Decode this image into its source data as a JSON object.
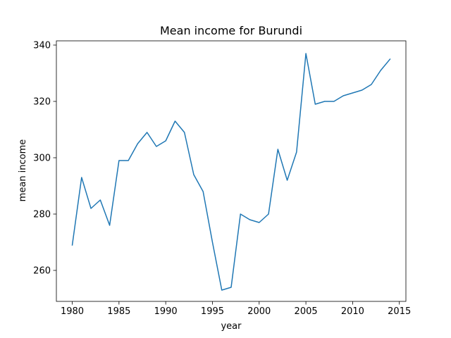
{
  "chart_data": {
    "type": "line",
    "title": "Mean income for Burundi",
    "xlabel": "year",
    "ylabel": "mean income",
    "xlim": [
      1978.3,
      2015.7
    ],
    "ylim": [
      249.0,
      341.5
    ],
    "xticks": [
      1980,
      1985,
      1990,
      1995,
      2000,
      2005,
      2010,
      2015
    ],
    "yticks": [
      260,
      280,
      300,
      320,
      340
    ],
    "grid": false,
    "color": "#1f77b4",
    "series": [
      {
        "x": [
          1980,
          1981,
          1982,
          1983,
          1984,
          1985,
          1986,
          1987,
          1988,
          1989,
          1990,
          1991,
          1992,
          1993,
          1994,
          1995,
          1996,
          1997,
          1998,
          1999,
          2000,
          2001,
          2002,
          2003,
          2004,
          2005,
          2006,
          2007,
          2008,
          2009,
          2010,
          2011,
          2012,
          2013,
          2014
        ],
        "y": [
          269,
          293,
          282,
          285,
          276,
          299,
          299,
          305,
          309,
          304,
          306,
          313,
          309,
          294,
          288,
          270,
          253,
          254,
          280,
          278,
          277,
          280,
          303,
          292,
          302,
          337,
          319,
          320,
          320,
          322,
          323,
          324,
          326,
          331,
          335
        ]
      }
    ]
  }
}
